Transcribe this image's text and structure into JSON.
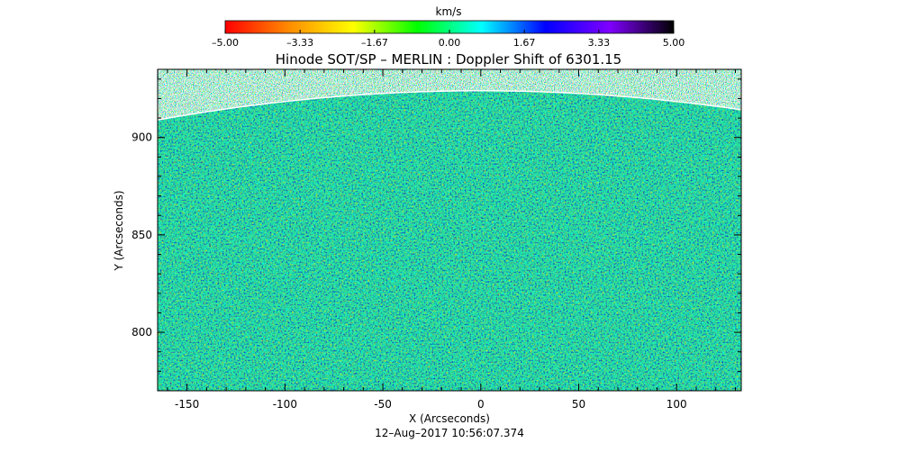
{
  "chart_data": {
    "type": "heatmap",
    "title": "Hinode SOT/SP – MERLIN : Doppler Shift of 6301.15",
    "xlabel": "X (Arcseconds)",
    "ylabel": "Y (Arcseconds)",
    "xlim": [
      -165,
      133
    ],
    "ylim": [
      770,
      935
    ],
    "x_ticks": [
      -150,
      -100,
      -50,
      0,
      50,
      100
    ],
    "y_ticks": [
      800,
      850,
      900
    ],
    "timestamp": "12–Aug–2017 10:56:07.374",
    "colorbar": {
      "label": "km/s",
      "range": [
        -5.0,
        5.0
      ],
      "ticks": [
        -5.0,
        -3.33,
        -1.67,
        0.0,
        1.67,
        3.33,
        5.0
      ],
      "tick_labels": [
        "–5.00",
        "–3.33",
        "–1.67",
        "0.00",
        "1.67",
        "3.33",
        "5.00"
      ],
      "colors": [
        "#ff0000",
        "#ff8c00",
        "#ffff00",
        "#00ff00",
        "#00ffff",
        "#0000ff",
        "#8000ff",
        "#000000"
      ]
    },
    "grid": false,
    "limb_y_center": 924,
    "limb_y_edge": 909
  }
}
